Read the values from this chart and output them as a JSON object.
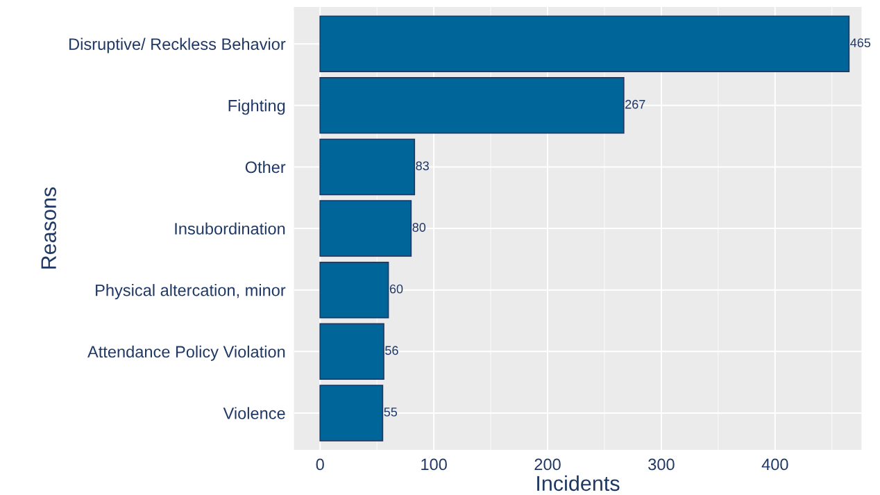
{
  "chart_data": {
    "type": "bar",
    "orientation": "horizontal",
    "xlabel": "Incidents",
    "ylabel": "Reasons",
    "categories": [
      "Disruptive/ Reckless Behavior",
      "Fighting",
      "Other",
      "Insubordination",
      "Physical altercation, minor",
      "Attendance Policy Violation",
      "Violence"
    ],
    "values": [
      465,
      267,
      83,
      80,
      60,
      56,
      55
    ],
    "color": "#006699",
    "xlim": [
      -23,
      476
    ],
    "xticks": [
      0,
      100,
      200,
      300,
      400
    ],
    "grid": true,
    "data_labels": true
  }
}
